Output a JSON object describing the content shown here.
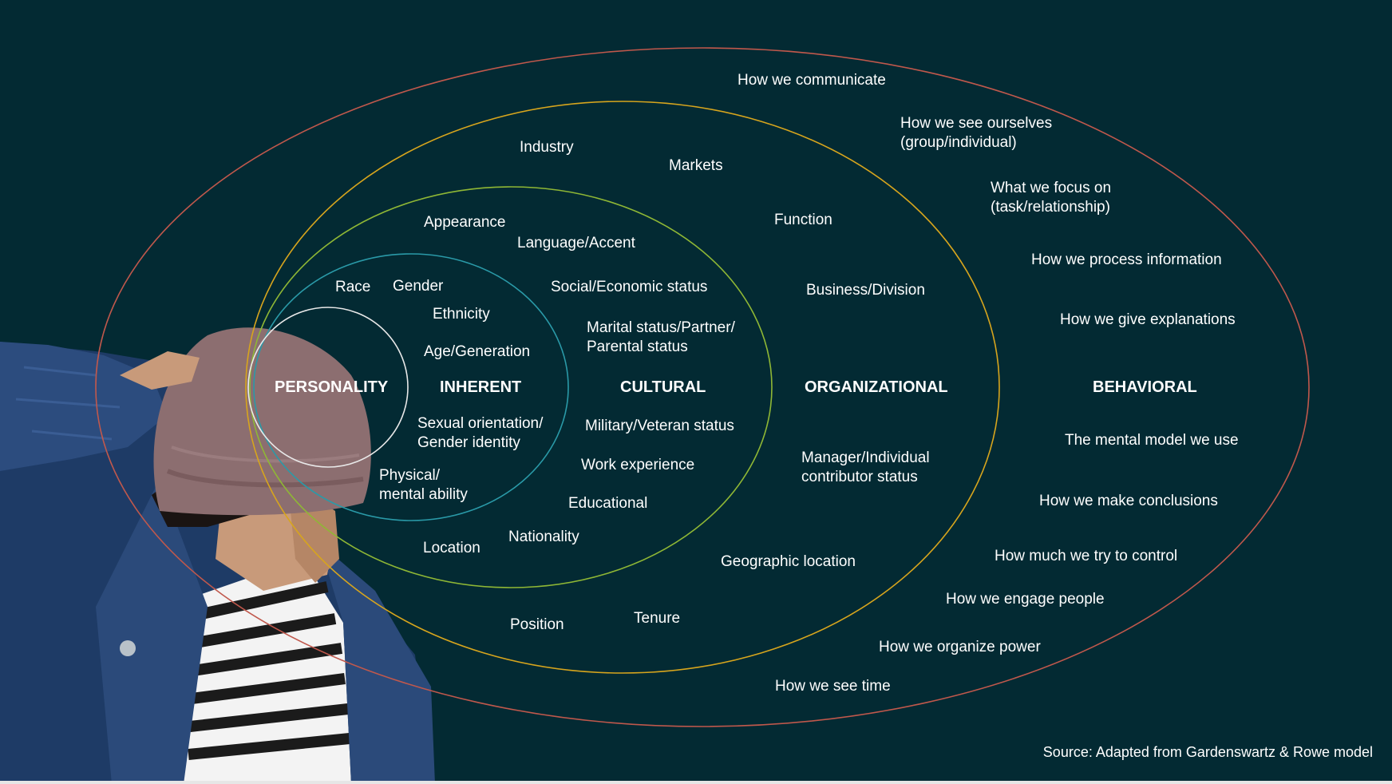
{
  "diagram": {
    "colors": {
      "background": "#032a33",
      "personality_ring": "#e9e9e9",
      "inherent_ring": "#2a9aa8",
      "cultural_ring": "#8fb735",
      "organizational_ring": "#d7a51d",
      "behavioral_ring": "#c0584c"
    },
    "headers": {
      "personality": "PERSONALITY",
      "inherent": "INHERENT",
      "cultural": "CULTURAL",
      "organizational": "ORGANIZATIONAL",
      "behavioral": "BEHAVIORAL"
    },
    "inherent_items": {
      "race": "Race",
      "gender": "Gender",
      "ethnicity": "Ethnicity",
      "age": "Age/Generation",
      "sexual_orientation": "Sexual orientation/\nGender identity",
      "physical": "Physical/\nmental ability"
    },
    "cultural_items": {
      "appearance": "Appearance",
      "language": "Language/Accent",
      "social": "Social/Economic status",
      "marital": "Marital status/Partner/\nParental status",
      "military": "Military/Veteran status",
      "work": "Work experience",
      "educational": "Educational",
      "nationality": "Nationality",
      "location": "Location"
    },
    "organizational_items": {
      "industry": "Industry",
      "markets": "Markets",
      "function": "Function",
      "business": "Business/Division",
      "manager": "Manager/Individual\ncontributor status",
      "geographic": "Geographic location",
      "position": "Position",
      "tenure": "Tenure"
    },
    "behavioral_items": {
      "communicate": "How we communicate",
      "see_ourselves": "How we see ourselves\n(group/individual)",
      "focus": "What we focus on\n(task/relationship)",
      "process": "How we process information",
      "explanations": "How we give explanations",
      "mental_model": "The mental model we use",
      "conclusions": "How we make conclusions",
      "control": "How much we try to control",
      "engage": "How we engage people",
      "power": "How we organize power",
      "time": "How we see time"
    },
    "source": "Source: Adapted from Gardenswartz & Rowe model"
  }
}
